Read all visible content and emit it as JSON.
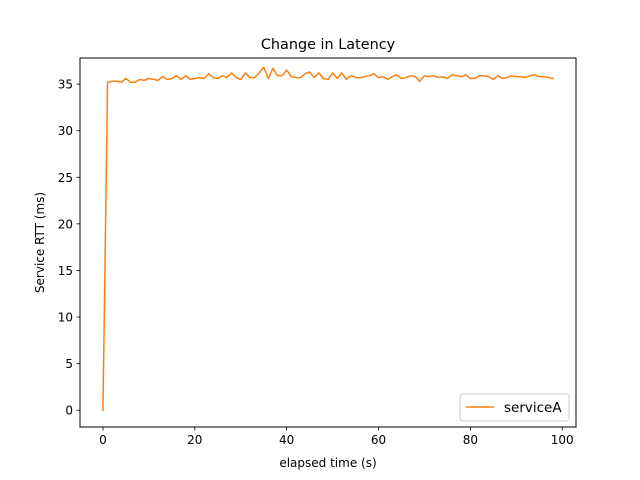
{
  "chart_data": {
    "type": "line",
    "title": "Change in Latency",
    "xlabel": "elapsed time (s)",
    "ylabel": "Service RTT (ms)",
    "xlim": [
      -5,
      103
    ],
    "ylim": [
      -1.8,
      37.8
    ],
    "xticks": [
      0,
      20,
      40,
      60,
      80,
      100
    ],
    "yticks": [
      0,
      5,
      10,
      15,
      20,
      25,
      30,
      35
    ],
    "grid": false,
    "legend_position": "lower-right",
    "series": [
      {
        "name": "serviceA",
        "color": "#ff7f0e",
        "x": [
          0,
          1,
          2,
          3,
          4,
          5,
          6,
          7,
          8,
          9,
          10,
          11,
          12,
          13,
          14,
          15,
          16,
          17,
          18,
          19,
          20,
          21,
          22,
          23,
          24,
          25,
          26,
          27,
          28,
          29,
          30,
          31,
          32,
          33,
          34,
          35,
          36,
          37,
          38,
          39,
          40,
          41,
          42,
          43,
          44,
          45,
          46,
          47,
          48,
          49,
          50,
          51,
          52,
          53,
          54,
          55,
          56,
          57,
          58,
          59,
          60,
          61,
          62,
          63,
          64,
          65,
          66,
          67,
          68,
          69,
          70,
          71,
          72,
          73,
          74,
          75,
          76,
          77,
          78,
          79,
          80,
          81,
          82,
          83,
          84,
          85,
          86,
          87,
          88,
          89,
          90,
          91,
          92,
          93,
          94,
          95,
          96,
          97,
          98
        ],
        "y": [
          0,
          35.2,
          35.3,
          35.3,
          35.2,
          35.6,
          35.2,
          35.2,
          35.5,
          35.4,
          35.6,
          35.5,
          35.4,
          35.8,
          35.5,
          35.6,
          35.9,
          35.5,
          35.9,
          35.5,
          35.6,
          35.7,
          35.6,
          36.1,
          35.7,
          35.6,
          35.9,
          35.7,
          36.2,
          35.7,
          35.5,
          36.2,
          35.7,
          35.7,
          36.2,
          36.8,
          35.6,
          36.7,
          35.9,
          35.9,
          36.5,
          35.8,
          35.7,
          35.7,
          36.1,
          36.3,
          35.7,
          36.2,
          35.6,
          35.5,
          36.2,
          35.6,
          36.2,
          35.5,
          35.9,
          35.7,
          35.7,
          35.8,
          35.9,
          36.1,
          35.7,
          35.8,
          35.5,
          35.8,
          36.0,
          35.6,
          35.7,
          35.9,
          35.8,
          35.3,
          35.9,
          35.8,
          35.9,
          35.7,
          35.8,
          35.6,
          36.0,
          35.9,
          35.8,
          36.0,
          35.6,
          35.6,
          35.9,
          35.9,
          35.8,
          35.5,
          35.9,
          35.6,
          35.7,
          35.9,
          35.8,
          35.8,
          35.7,
          35.9,
          36.0,
          35.8,
          35.8,
          35.7,
          35.6
        ]
      }
    ]
  }
}
